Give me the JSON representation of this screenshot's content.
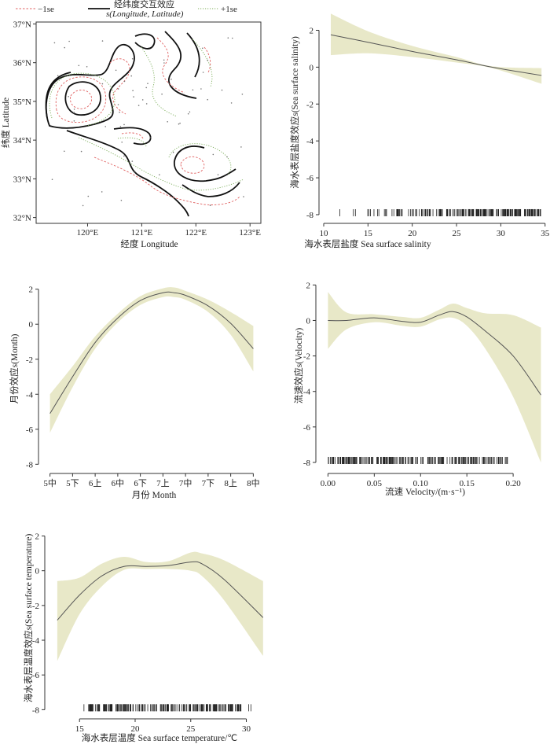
{
  "chart_data": [
    {
      "id": "contour",
      "type": "contour",
      "legend": {
        "minus": "−1se",
        "main_line1": "经纬度交互效应",
        "main_line2": "s(Longitude, Latitude)",
        "plus": "+1se"
      },
      "xlabel": "经度 Longitude",
      "ylabel": "纬度 Latitude",
      "xticks": [
        "120°E",
        "121°E",
        "122°E",
        "123°E"
      ],
      "xtick_values": [
        120,
        121,
        122,
        123
      ],
      "yticks": [
        "32°N",
        "33°N",
        "34°N",
        "35°N",
        "36°N",
        "37°N"
      ],
      "ytick_values": [
        32,
        33,
        34,
        35,
        36,
        37
      ],
      "xlim": [
        119.05,
        123.2
      ],
      "ylim": [
        31.85,
        37.05
      ]
    },
    {
      "id": "salinity",
      "type": "line",
      "xlabel": "海水表层盐度 Sea surface salinity",
      "ylabel": "海水表层盐度效应s(Sea surface salinity)",
      "xticks": [
        "10",
        "15",
        "20",
        "25",
        "30",
        "35"
      ],
      "xtick_values": [
        10,
        15,
        20,
        25,
        30,
        35
      ],
      "yticks": [
        "-8",
        "-6",
        "-4",
        "-2",
        "0",
        "2"
      ],
      "ytick_values": [
        -8,
        -6,
        -4,
        -2,
        0,
        2
      ],
      "xlim": [
        10,
        35.2
      ],
      "ylim": [
        -8.3,
        3.3
      ],
      "x": [
        10.8,
        15,
        20,
        25,
        29,
        34.6
      ],
      "y": [
        1.75,
        1.35,
        0.85,
        0.4,
        0.0,
        -0.45
      ],
      "lower": [
        0.65,
        0.75,
        0.55,
        0.25,
        -0.05,
        -0.9
      ],
      "upper": [
        2.9,
        1.95,
        1.15,
        0.55,
        0.05,
        -0.05
      ],
      "rug_range": [
        10.8,
        34.6
      ]
    },
    {
      "id": "month",
      "type": "line",
      "xlabel": "月份 Month",
      "ylabel": "月份效应s(Month)",
      "xticks": [
        "5中",
        "5下",
        "6上",
        "6中",
        "6下",
        "7上",
        "7中",
        "7下",
        "8上",
        "8中"
      ],
      "xtick_values": [
        0,
        1,
        2,
        3,
        4,
        5,
        6,
        7,
        8,
        9
      ],
      "yticks": [
        "-8",
        "-6",
        "-4",
        "-2",
        "0",
        "2"
      ],
      "ytick_values": [
        -8,
        -6,
        -4,
        -2,
        0,
        2
      ],
      "xlim": [
        -0.3,
        9.3
      ],
      "ylim": [
        -8.3,
        3.2
      ],
      "x": [
        0,
        1,
        2,
        3,
        4,
        5,
        5.5,
        6,
        7,
        8,
        9
      ],
      "y": [
        -5.1,
        -3.0,
        -1.05,
        0.35,
        1.35,
        1.8,
        1.8,
        1.65,
        1.05,
        0.05,
        -1.4
      ],
      "lower": [
        -6.2,
        -3.6,
        -1.4,
        0.1,
        1.1,
        1.55,
        1.55,
        1.4,
        0.7,
        -0.6,
        -2.7
      ],
      "upper": [
        -4.0,
        -2.4,
        -0.7,
        0.6,
        1.6,
        2.05,
        2.1,
        1.9,
        1.4,
        0.7,
        -0.1
      ]
    },
    {
      "id": "velocity",
      "type": "line",
      "xlabel": "流速 Velocity/(m·s⁻¹)",
      "ylabel": "流速效应s(Velocity)",
      "xticks": [
        "0.00",
        "0.05",
        "0.10",
        "0.15",
        "0.20"
      ],
      "xtick_values": [
        0,
        0.05,
        0.1,
        0.15,
        0.2
      ],
      "yticks": [
        "-8",
        "-6",
        "-4",
        "-2",
        "0",
        "2"
      ],
      "ytick_values": [
        -8,
        -6,
        -4,
        -2,
        0,
        2
      ],
      "xlim": [
        -0.008,
        0.233
      ],
      "ylim": [
        -8.4,
        3.3
      ],
      "x": [
        0.0,
        0.02,
        0.05,
        0.08,
        0.1,
        0.12,
        0.135,
        0.15,
        0.17,
        0.2,
        0.23
      ],
      "y": [
        0.0,
        0.0,
        0.15,
        -0.05,
        -0.1,
        0.3,
        0.5,
        0.2,
        -0.6,
        -2.0,
        -4.2
      ],
      "lower": [
        -1.6,
        -0.5,
        -0.1,
        -0.3,
        -0.35,
        0.05,
        0.15,
        -0.3,
        -1.6,
        -4.3,
        -8.0
      ],
      "upper": [
        1.6,
        0.45,
        0.35,
        0.2,
        0.15,
        0.6,
        0.95,
        0.7,
        0.4,
        0.3,
        -0.4
      ],
      "rug_range": [
        0.0,
        0.229
      ]
    },
    {
      "id": "temperature",
      "type": "line",
      "xlabel": "海水表层温度 Sea surface temperature/℃",
      "ylabel": "海水表层温度效应s(Sea surface temperature)",
      "xticks": [
        "15",
        "20",
        "25",
        "30"
      ],
      "xtick_values": [
        15,
        20,
        25,
        30
      ],
      "yticks": [
        "-8",
        "-6",
        "-4",
        "-2",
        "0",
        "2"
      ],
      "ytick_values": [
        -8,
        -6,
        -4,
        -2,
        0,
        2
      ],
      "xlim": [
        12.3,
        31.8
      ],
      "ylim": [
        -8.3,
        3.2
      ],
      "x": [
        13.0,
        15,
        17,
        19,
        21,
        23,
        25,
        26,
        28,
        31.5
      ],
      "y": [
        -2.85,
        -1.4,
        -0.3,
        0.25,
        0.25,
        0.3,
        0.5,
        0.4,
        -0.5,
        -2.7
      ],
      "lower": [
        -5.2,
        -2.5,
        -0.9,
        0.05,
        0.1,
        0.1,
        0.0,
        -0.3,
        -1.7,
        -4.9
      ],
      "upper": [
        -0.6,
        -0.4,
        0.4,
        0.8,
        0.5,
        0.55,
        1.05,
        1.0,
        0.6,
        -0.6
      ],
      "rug_range": [
        13.0,
        31.5
      ]
    }
  ]
}
